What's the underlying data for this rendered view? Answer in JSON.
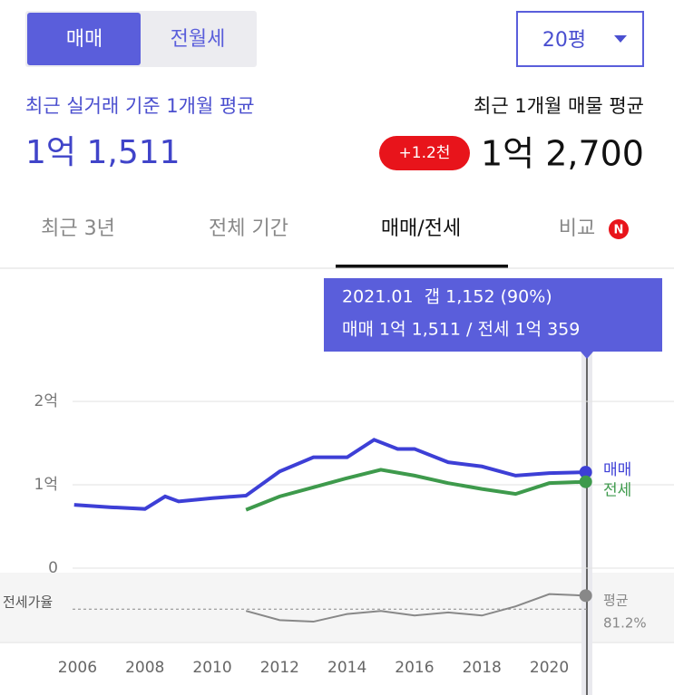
{
  "tabs": [
    "매매",
    "전월세"
  ],
  "size_select": "20평",
  "recent_trade": {
    "label": "최근 실거래 기준 1개월 평균",
    "value": "1억 1,511"
  },
  "listing": {
    "label": "최근 1개월 매물 평균",
    "change": "+1.2천",
    "value": "1억 2,700"
  },
  "view_tabs": [
    "최근 3년",
    "전체 기간",
    "매매/전세",
    "비교"
  ],
  "compare_badge": "N",
  "tooltip": [
    "2021.01  갭 1,152 (90%)",
    "매매 1억 1,511 / 전세 1억 359"
  ],
  "chart_data": [
    {
      "type": "line",
      "xlim": [
        2003.7,
        2023.7
      ],
      "ylim": [
        0,
        25000
      ],
      "yticks": [
        0,
        {
          "value": 10000,
          "label": "1억"
        },
        {
          "value": 20000,
          "label": "2억"
        }
      ],
      "xticks": [
        2006,
        2008,
        2010,
        2012,
        2014,
        2016,
        2018,
        2020
      ],
      "grid": true,
      "series": [
        {
          "name": "매매",
          "color": "#3d3fd6",
          "x": [
            2005.9,
            2007,
            2008,
            2008.6,
            2009,
            2010,
            2011,
            2012,
            2013,
            2014,
            2014.8,
            2015.5,
            2016,
            2017,
            2018,
            2019,
            2020,
            2021.08
          ],
          "values": [
            7600,
            7300,
            7100,
            8600,
            8000,
            8400,
            8700,
            11600,
            13300,
            13300,
            15400,
            14300,
            14300,
            12700,
            12200,
            11100,
            11400,
            11511
          ]
        },
        {
          "name": "전세",
          "color": "#3e9a4c",
          "x": [
            2011,
            2012,
            2013,
            2014,
            2015,
            2016,
            2017,
            2018,
            2019,
            2020,
            2021.08
          ],
          "values": [
            7000,
            8600,
            9700,
            10800,
            11800,
            11100,
            10200,
            9500,
            8900,
            10200,
            10359
          ]
        }
      ]
    },
    {
      "type": "line",
      "title": "전세가율",
      "xlim": [
        2003.7,
        2023.7
      ],
      "ylim": [
        60,
        105
      ],
      "average": {
        "value": 81.2,
        "label": "81.2%"
      },
      "average_label": "평균",
      "series": [
        {
          "color": "#888888",
          "x": [
            2011,
            2012,
            2013,
            2014,
            2015,
            2016,
            2017,
            2018,
            2019,
            2020,
            2021.08
          ],
          "values": [
            80,
            74,
            73,
            78,
            80,
            77,
            79,
            77,
            83,
            91,
            90
          ]
        }
      ]
    }
  ]
}
